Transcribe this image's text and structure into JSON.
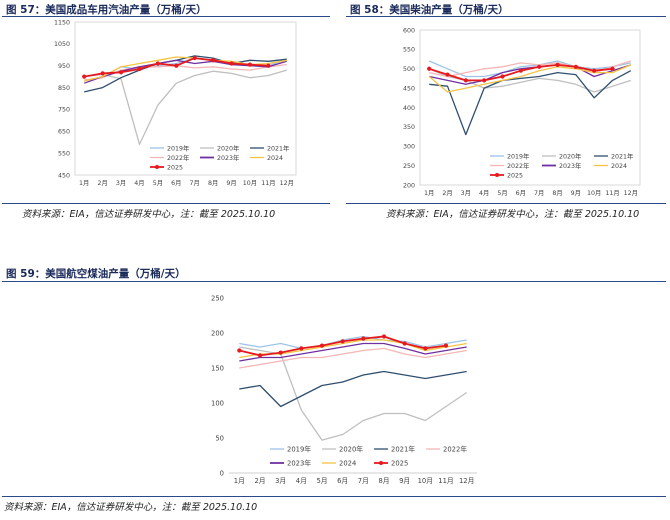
{
  "figures": [
    {
      "title": "图 57：美国成品车用汽油产量（万桶/天）",
      "source": "资料来源：EIA，信达证券研发中心，注：截至 2025.10.10"
    },
    {
      "title": "图 58：美国柴油产量（万桶/天）",
      "source": "资料来源：EIA，信达证券研发中心，注：截至 2025.10.10"
    },
    {
      "title": "图 59：美国航空煤油产量（万桶/天）",
      "source": "资料来源：EIA，信达证券研发中心，注：截至 2025.10.10"
    }
  ],
  "series_colors": {
    "2019年": "#9dc3e6",
    "2020年": "#bfbfbf",
    "2021年": "#2f4f6f",
    "2022年": "#f4b6b6",
    "2023年": "#7030a0",
    "2024": "#f5c342",
    "2025": "#e6191e"
  },
  "chart_data": [
    {
      "type": "line",
      "x_labels": [
        "1月",
        "2月",
        "3月",
        "4月",
        "5月",
        "6月",
        "7月",
        "8月",
        "9月",
        "10月",
        "11月",
        "12月"
      ],
      "yticks": [
        450,
        550,
        650,
        750,
        850,
        950,
        1050,
        1150
      ],
      "ylim": [
        450,
        1150
      ],
      "legend": [
        "2019年",
        "2020年",
        "2021年",
        "2022年",
        "2023年",
        "2024",
        "2025"
      ],
      "legend_position": "bottom-inside",
      "series": [
        {
          "name": "2019年",
          "values": [
            880,
            900,
            945,
            935,
            950,
            960,
            985,
            975,
            955,
            955,
            950,
            980
          ]
        },
        {
          "name": "2020年",
          "values": [
            900,
            910,
            890,
            590,
            770,
            870,
            905,
            925,
            915,
            895,
            905,
            930
          ]
        },
        {
          "name": "2021年",
          "values": [
            830,
            850,
            895,
            930,
            960,
            975,
            995,
            985,
            960,
            975,
            970,
            980
          ]
        },
        {
          "name": "2022年",
          "values": [
            885,
            895,
            930,
            945,
            945,
            950,
            940,
            945,
            935,
            930,
            945,
            955
          ]
        },
        {
          "name": "2023年",
          "values": [
            870,
            900,
            925,
            945,
            960,
            975,
            960,
            970,
            955,
            950,
            945,
            970
          ]
        },
        {
          "name": "2024",
          "values": [
            880,
            900,
            945,
            960,
            975,
            990,
            985,
            975,
            970,
            955,
            960,
            975
          ]
        },
        {
          "name": "2025",
          "values": [
            900,
            915,
            920,
            935,
            960,
            950,
            985,
            975,
            960,
            955,
            950,
            null
          ]
        }
      ]
    },
    {
      "type": "line",
      "x_labels": [
        "1月",
        "2月",
        "3月",
        "4月",
        "5月",
        "6月",
        "7月",
        "8月",
        "9月",
        "10月",
        "11月",
        "12月"
      ],
      "yticks": [
        200,
        250,
        300,
        350,
        400,
        450,
        500,
        550,
        600
      ],
      "ylim": [
        200,
        600
      ],
      "legend": [
        "2019年",
        "2020年",
        "2021年",
        "2022年",
        "2023年",
        "2024",
        "2025"
      ],
      "legend_position": "bottom-inside",
      "series": [
        {
          "name": "2019年",
          "values": [
            520,
            500,
            480,
            480,
            490,
            505,
            510,
            520,
            505,
            500,
            505,
            515
          ]
        },
        {
          "name": "2020年",
          "values": [
            500,
            480,
            470,
            450,
            455,
            465,
            475,
            470,
            460,
            440,
            455,
            470
          ]
        },
        {
          "name": "2021年",
          "values": [
            460,
            455,
            330,
            450,
            470,
            475,
            480,
            490,
            485,
            425,
            470,
            495
          ]
        },
        {
          "name": "2022年",
          "values": [
            490,
            480,
            490,
            500,
            505,
            515,
            510,
            515,
            505,
            490,
            505,
            520
          ]
        },
        {
          "name": "2023年",
          "values": [
            480,
            470,
            460,
            470,
            490,
            500,
            505,
            510,
            505,
            480,
            495,
            510
          ]
        },
        {
          "name": "2024",
          "values": [
            480,
            440,
            450,
            460,
            470,
            480,
            495,
            505,
            500,
            490,
            490,
            510
          ]
        },
        {
          "name": "2025",
          "values": [
            500,
            485,
            470,
            470,
            480,
            495,
            505,
            510,
            505,
            495,
            500,
            null
          ]
        }
      ]
    },
    {
      "type": "line",
      "x_labels": [
        "1月",
        "2月",
        "3月",
        "4月",
        "5月",
        "6月",
        "7月",
        "8月",
        "9月",
        "10月",
        "11月",
        "12月"
      ],
      "yticks": [
        0,
        50,
        100,
        150,
        200,
        250
      ],
      "ylim": [
        0,
        250
      ],
      "legend": [
        "2019年",
        "2020年",
        "2021年",
        "2022年",
        "2023年",
        "2024",
        "2025"
      ],
      "legend_position": "bottom-inside",
      "series": [
        {
          "name": "2019年",
          "values": [
            185,
            180,
            185,
            178,
            182,
            190,
            195,
            190,
            188,
            180,
            185,
            190
          ]
        },
        {
          "name": "2020年",
          "values": [
            180,
            175,
            170,
            90,
            47,
            55,
            75,
            85,
            85,
            75,
            95,
            115
          ]
        },
        {
          "name": "2021年",
          "values": [
            120,
            125,
            95,
            110,
            125,
            130,
            140,
            145,
            140,
            135,
            140,
            145
          ]
        },
        {
          "name": "2022年",
          "values": [
            150,
            155,
            160,
            165,
            165,
            170,
            175,
            178,
            170,
            165,
            170,
            175
          ]
        },
        {
          "name": "2023年",
          "values": [
            160,
            165,
            165,
            170,
            175,
            180,
            185,
            185,
            178,
            170,
            175,
            180
          ]
        },
        {
          "name": "2024",
          "values": [
            165,
            170,
            170,
            175,
            180,
            185,
            190,
            190,
            185,
            175,
            180,
            185
          ]
        },
        {
          "name": "2025",
          "values": [
            175,
            168,
            172,
            178,
            182,
            188,
            192,
            195,
            185,
            178,
            182,
            null
          ]
        }
      ]
    }
  ]
}
